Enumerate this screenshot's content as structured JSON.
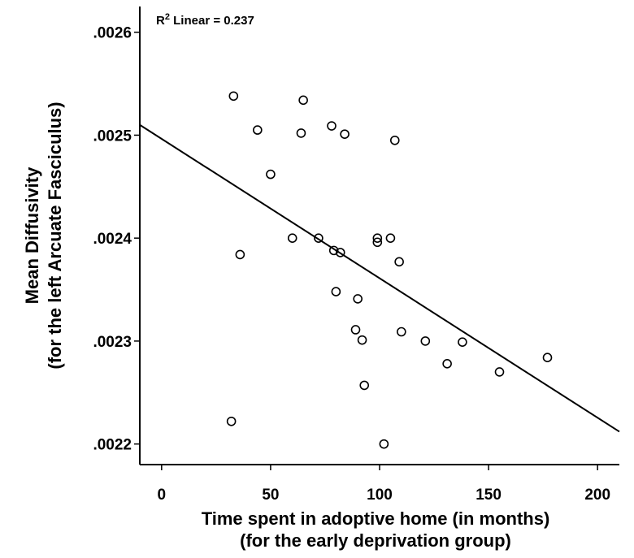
{
  "chart_data": {
    "type": "scatter",
    "annotation": {
      "r_prefix": "R",
      "r_sup": "2",
      "text": " Linear = 0.237"
    },
    "xlabel": [
      "Time spent in adoptive home (in months)",
      "(for the early deprivation group)"
    ],
    "ylabel": [
      "Mean Diffusivity",
      "(for the left Arcuate Fasciculus)"
    ],
    "xlim": [
      -10,
      210
    ],
    "ylim": [
      0.00218,
      0.002625
    ],
    "x_ticks": [
      {
        "value": 0,
        "label": "0"
      },
      {
        "value": 50,
        "label": "50"
      },
      {
        "value": 100,
        "label": "100"
      },
      {
        "value": 150,
        "label": "150"
      },
      {
        "value": 200,
        "label": "200"
      }
    ],
    "y_ticks": [
      {
        "value": 0.0022,
        "label": ".0022"
      },
      {
        "value": 0.0023,
        "label": ".0023"
      },
      {
        "value": 0.0024,
        "label": ".0024"
      },
      {
        "value": 0.0025,
        "label": ".0025"
      },
      {
        "value": 0.0026,
        "label": ".0026"
      }
    ],
    "points": [
      {
        "x": 33,
        "y": 0.002538
      },
      {
        "x": 65,
        "y": 0.002534
      },
      {
        "x": 44,
        "y": 0.002505
      },
      {
        "x": 64,
        "y": 0.002502
      },
      {
        "x": 78,
        "y": 0.002509
      },
      {
        "x": 84,
        "y": 0.002501
      },
      {
        "x": 107,
        "y": 0.002495
      },
      {
        "x": 50,
        "y": 0.002462
      },
      {
        "x": 60,
        "y": 0.0024
      },
      {
        "x": 72,
        "y": 0.0024
      },
      {
        "x": 99,
        "y": 0.0024
      },
      {
        "x": 105,
        "y": 0.0024
      },
      {
        "x": 99,
        "y": 0.002396
      },
      {
        "x": 36,
        "y": 0.002384
      },
      {
        "x": 79,
        "y": 0.002388
      },
      {
        "x": 82,
        "y": 0.002386
      },
      {
        "x": 109,
        "y": 0.002377
      },
      {
        "x": 80,
        "y": 0.002348
      },
      {
        "x": 90,
        "y": 0.002341
      },
      {
        "x": 89,
        "y": 0.002311
      },
      {
        "x": 110,
        "y": 0.002309
      },
      {
        "x": 92,
        "y": 0.002301
      },
      {
        "x": 121,
        "y": 0.0023
      },
      {
        "x": 138,
        "y": 0.002299
      },
      {
        "x": 131,
        "y": 0.002278
      },
      {
        "x": 177,
        "y": 0.002284
      },
      {
        "x": 155,
        "y": 0.00227
      },
      {
        "x": 93,
        "y": 0.002257
      },
      {
        "x": 32,
        "y": 0.002222
      },
      {
        "x": 102,
        "y": 0.0022
      }
    ],
    "fit_line": {
      "x": [
        -10,
        210
      ],
      "y": [
        0.00251,
        0.002212
      ]
    },
    "grid": false,
    "legend": "none"
  }
}
